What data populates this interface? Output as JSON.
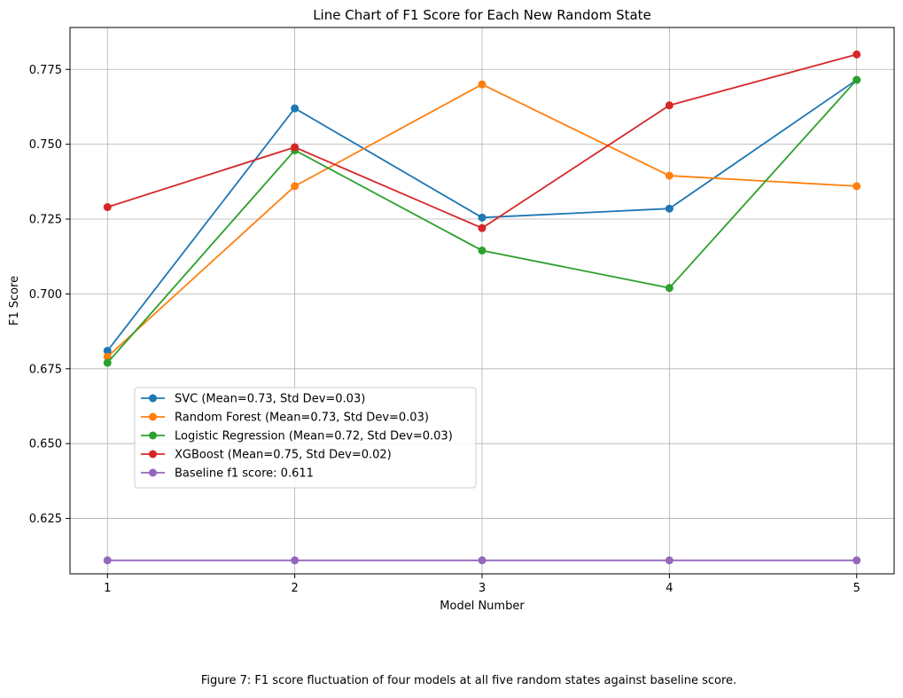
{
  "chart_data": {
    "type": "line",
    "title": "Line Chart of F1 Score for Each New Random State",
    "xlabel": "Model Number",
    "ylabel": "F1 Score",
    "x": [
      1,
      2,
      3,
      4,
      5
    ],
    "xticks": [
      "1",
      "2",
      "3",
      "4",
      "5"
    ],
    "xlim": [
      0.8,
      5.2
    ],
    "ylim": [
      0.6065,
      0.789
    ],
    "yticks": [
      "0.625",
      "0.650",
      "0.675",
      "0.700",
      "0.725",
      "0.750",
      "0.775"
    ],
    "ytick_values": [
      0.625,
      0.65,
      0.675,
      0.7,
      0.725,
      0.75,
      0.775
    ],
    "grid": true,
    "legend_position": "center-left",
    "series": [
      {
        "name": "SVC (Mean=0.73, Std Dev=0.03)",
        "color": "#1f77b4",
        "values": [
          0.681,
          0.762,
          0.7255,
          0.7285,
          0.7715
        ]
      },
      {
        "name": "Random Forest (Mean=0.73, Std Dev=0.03)",
        "color": "#ff7f0e",
        "values": [
          0.679,
          0.736,
          0.77,
          0.7395,
          0.736
        ]
      },
      {
        "name": "Logistic Regression (Mean=0.72, Std Dev=0.03)",
        "color": "#2ca02c",
        "values": [
          0.677,
          0.748,
          0.7145,
          0.702,
          0.7715
        ]
      },
      {
        "name": "XGBoost (Mean=0.75, Std Dev=0.02)",
        "color": "#d62728",
        "values": [
          0.729,
          0.749,
          0.722,
          0.763,
          0.78
        ]
      },
      {
        "name": "Baseline f1 score: 0.611",
        "color": "#9467bd",
        "values": [
          0.611,
          0.611,
          0.611,
          0.611,
          0.611
        ]
      }
    ]
  },
  "caption": "Figure 7: F1 score fluctuation of four models at all five random states against baseline score."
}
